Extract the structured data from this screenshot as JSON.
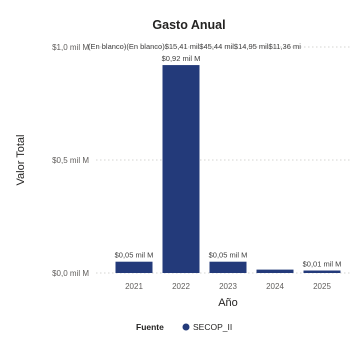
{
  "chart_data": {
    "type": "bar",
    "title": "Gasto Anual",
    "xlabel": "Año",
    "ylabel": "Valor Total",
    "categories": [
      "2021",
      "2022",
      "2023",
      "2024",
      "2025"
    ],
    "series": [
      {
        "name": "SECOP_II",
        "values": [
          0.05,
          0.92,
          0.05,
          0.015,
          0.011
        ]
      }
    ],
    "data_labels": [
      "$0,05 mil M",
      "$0,92 mil M",
      "$0,05 mil M",
      "",
      "$0,01 mil M"
    ],
    "ylim": [
      0,
      1.0
    ],
    "yticks": [
      {
        "value": 0.0,
        "label": "$0,0 mil M"
      },
      {
        "value": 0.5,
        "label": "$0,5 mil M"
      },
      {
        "value": 1.0,
        "label": "$1,0 mil M"
      }
    ],
    "top_labels": "(En blanco)(En blanco)$15,41 mil$45,44 mil$14,95 mil$11,36 mi",
    "grid": true,
    "legend": {
      "title": "Fuente",
      "items": [
        "SECOP_II"
      ],
      "position": "bottom"
    },
    "bar_color": "#233a7a"
  }
}
